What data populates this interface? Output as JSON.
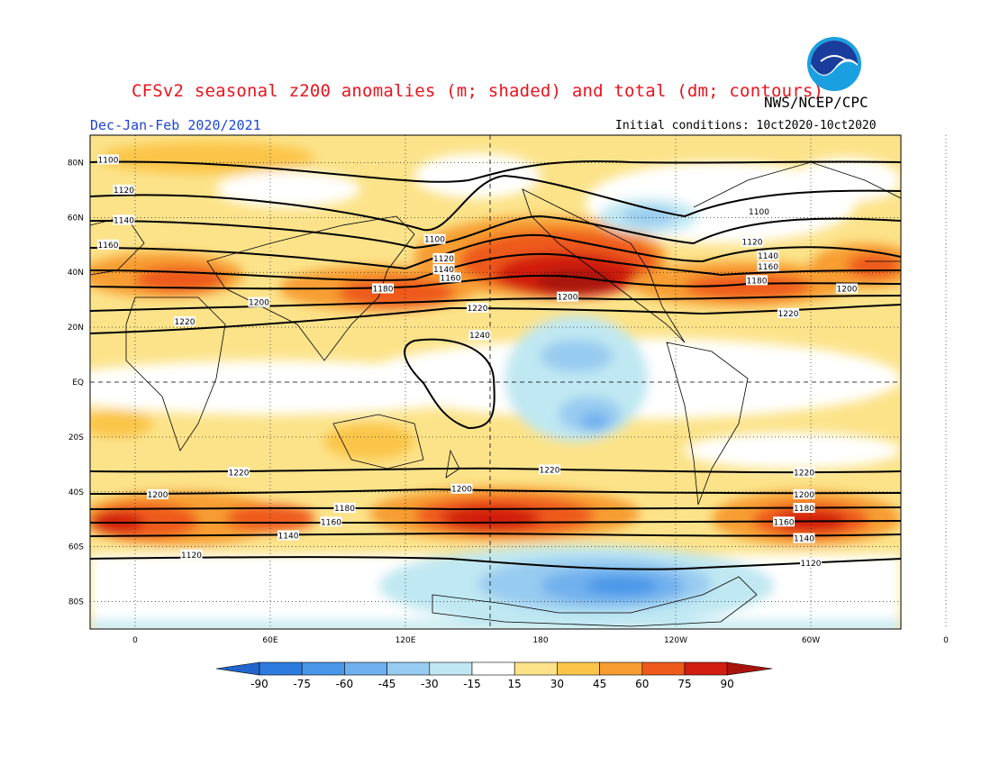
{
  "header": {
    "title": "CFSv2 seasonal z200 anomalies (m; shaded) and total (dm; contours)",
    "agency": "NWS/NCEP/CPC",
    "period": "Dec-Jan-Feb 2020/2021",
    "initial_conditions": "Initial conditions: 10ct2020-10ct2020",
    "logo_text": "NOAA"
  },
  "map": {
    "projection": "cylindrical equidistant",
    "lon_range": [
      -20,
      340
    ],
    "lat_range": [
      -90,
      90
    ],
    "lat_labels": [
      "80N",
      "60N",
      "40N",
      "20N",
      "EQ",
      "20S",
      "40S",
      "60S",
      "80S"
    ],
    "lat_values": [
      80,
      60,
      40,
      20,
      0,
      -20,
      -40,
      -60,
      -80
    ],
    "lon_labels": [
      "0",
      "60E",
      "120E",
      "180",
      "120W",
      "60W",
      "0"
    ],
    "lon_values": [
      0,
      60,
      120,
      180,
      240,
      300,
      360
    ],
    "grid": "dotted",
    "contour_labels": [
      {
        "text": "1100",
        "lon": -12,
        "lat": 81
      },
      {
        "text": "1120",
        "lon": -5,
        "lat": 70
      },
      {
        "text": "1140",
        "lon": -5,
        "lat": 59
      },
      {
        "text": "1160",
        "lon": -12,
        "lat": 50
      },
      {
        "text": "1100",
        "lon": 133,
        "lat": 52
      },
      {
        "text": "1120",
        "lon": 137,
        "lat": 45
      },
      {
        "text": "1140",
        "lon": 137,
        "lat": 41
      },
      {
        "text": "1160",
        "lon": 140,
        "lat": 38
      },
      {
        "text": "1180",
        "lon": 110,
        "lat": 34
      },
      {
        "text": "1200",
        "lon": 55,
        "lat": 29
      },
      {
        "text": "1220",
        "lon": 22,
        "lat": 22
      },
      {
        "text": "1220",
        "lon": 152,
        "lat": 27
      },
      {
        "text": "1200",
        "lon": 192,
        "lat": 31
      },
      {
        "text": "1240",
        "lon": 153,
        "lat": 17
      },
      {
        "text": "1100",
        "lon": 277,
        "lat": 62
      },
      {
        "text": "1120",
        "lon": 274,
        "lat": 51
      },
      {
        "text": "1140",
        "lon": 281,
        "lat": 46
      },
      {
        "text": "1160",
        "lon": 281,
        "lat": 42
      },
      {
        "text": "1180",
        "lon": 276,
        "lat": 37
      },
      {
        "text": "1200",
        "lon": 316,
        "lat": 34
      },
      {
        "text": "1220",
        "lon": 290,
        "lat": 25
      },
      {
        "text": "1220",
        "lon": 46,
        "lat": -33
      },
      {
        "text": "1200",
        "lon": 10,
        "lat": -41
      },
      {
        "text": "1180",
        "lon": 93,
        "lat": -46
      },
      {
        "text": "1160",
        "lon": 87,
        "lat": -51
      },
      {
        "text": "1140",
        "lon": 68,
        "lat": -56
      },
      {
        "text": "1120",
        "lon": 25,
        "lat": -63
      },
      {
        "text": "1200",
        "lon": 145,
        "lat": -39
      },
      {
        "text": "1220",
        "lon": 184,
        "lat": -32
      },
      {
        "text": "1220",
        "lon": 297,
        "lat": -33
      },
      {
        "text": "1200",
        "lon": 297,
        "lat": -41
      },
      {
        "text": "1180",
        "lon": 297,
        "lat": -46
      },
      {
        "text": "1160",
        "lon": 288,
        "lat": -51
      },
      {
        "text": "1140",
        "lon": 297,
        "lat": -57
      },
      {
        "text": "1120",
        "lon": 300,
        "lat": -66
      }
    ]
  },
  "colorbar": {
    "labels": [
      "-90",
      "-75",
      "-60",
      "-45",
      "-30",
      "-15",
      "15",
      "30",
      "45",
      "60",
      "75",
      "90"
    ],
    "colors": [
      "#2266cc",
      "#2e7be0",
      "#4a96e8",
      "#6fb0ee",
      "#98cbf0",
      "#c0e8f2",
      "#ffffff",
      "#fce38a",
      "#fbc54a",
      "#f79d32",
      "#ee5a1c",
      "#d21e10",
      "#a8130c"
    ]
  }
}
